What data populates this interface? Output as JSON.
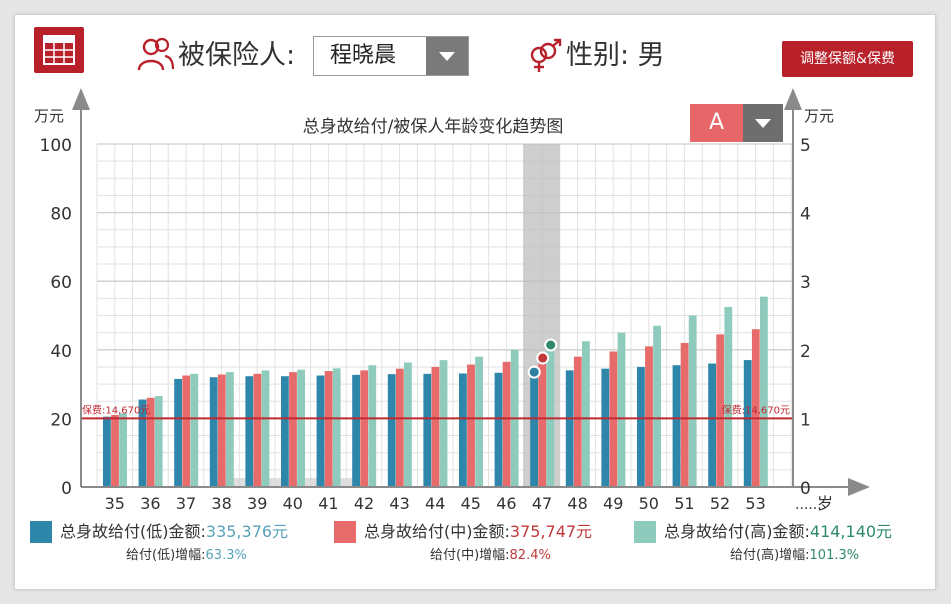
{
  "header": {
    "insured_label": "被保险人:",
    "insured_value": "程晓晨",
    "gender_label": "性别: 男",
    "adjust_button": "调整保额&保费"
  },
  "scheme_select": {
    "value": "A"
  },
  "colors": {
    "low": "#2e86ab",
    "mid": "#e86b6b",
    "high": "#8fcbbd",
    "accent": "#b8202a"
  },
  "chart_data": {
    "type": "bar",
    "title": "总身故给付/被保人年龄变化趋势图",
    "ylabel_left": "万元",
    "ylabel_right": "万元",
    "xlabel": "岁",
    "x_more": "......",
    "ylim_left": [
      0,
      100
    ],
    "yticks_left": [
      "0",
      "20",
      "40",
      "60",
      "80",
      "100"
    ],
    "ylim_right": [
      0,
      5
    ],
    "yticks_right": [
      "0",
      "1",
      "2",
      "3",
      "4",
      "5"
    ],
    "categories": [
      "35",
      "36",
      "37",
      "38",
      "39",
      "40",
      "41",
      "42",
      "43",
      "44",
      "45",
      "46",
      "47",
      "48",
      "49",
      "50",
      "51",
      "52",
      "53"
    ],
    "series": [
      {
        "name": "总身故给付(低)",
        "values": [
          20.5,
          25.5,
          31.5,
          32.0,
          32.3,
          32.3,
          32.5,
          32.7,
          32.9,
          33.0,
          33.1,
          33.3,
          33.5,
          34.0,
          34.5,
          35.0,
          35.5,
          36.0,
          37.0
        ]
      },
      {
        "name": "总身故给付(中)",
        "values": [
          21.0,
          26.0,
          32.5,
          32.8,
          33.0,
          33.5,
          33.8,
          34.0,
          34.5,
          35.0,
          35.7,
          36.5,
          37.6,
          38.0,
          39.5,
          41.0,
          42.0,
          44.5,
          46.0
        ]
      },
      {
        "name": "总身故给付(高)",
        "values": [
          21.5,
          26.5,
          33.0,
          33.5,
          34.0,
          34.2,
          34.6,
          35.5,
          36.3,
          37.0,
          38.0,
          40.0,
          41.4,
          42.5,
          45.0,
          47.0,
          50.0,
          52.5,
          55.5
        ]
      }
    ],
    "highlight": {
      "category": "47",
      "low": 33.5,
      "mid": 37.6,
      "high": 41.4
    },
    "premium_line": {
      "value": 20,
      "label_left": "保费:14,670元",
      "label_right": "保费:14,670元"
    },
    "grid": true,
    "legend_position": "bottom"
  },
  "legend": [
    {
      "label": "总身故给付(低)金额:",
      "amount": "335,376元",
      "growth_label": "给付(低)增幅:",
      "growth_value": "63.3%"
    },
    {
      "label": "总身故给付(中)金额:",
      "amount": "375,747元",
      "growth_label": "给付(中)增幅:",
      "growth_value": "82.4%"
    },
    {
      "label": "总身故给付(高)金额:",
      "amount": "414,140元",
      "growth_label": "给付(高)增幅:",
      "growth_value": "101.3%"
    }
  ]
}
